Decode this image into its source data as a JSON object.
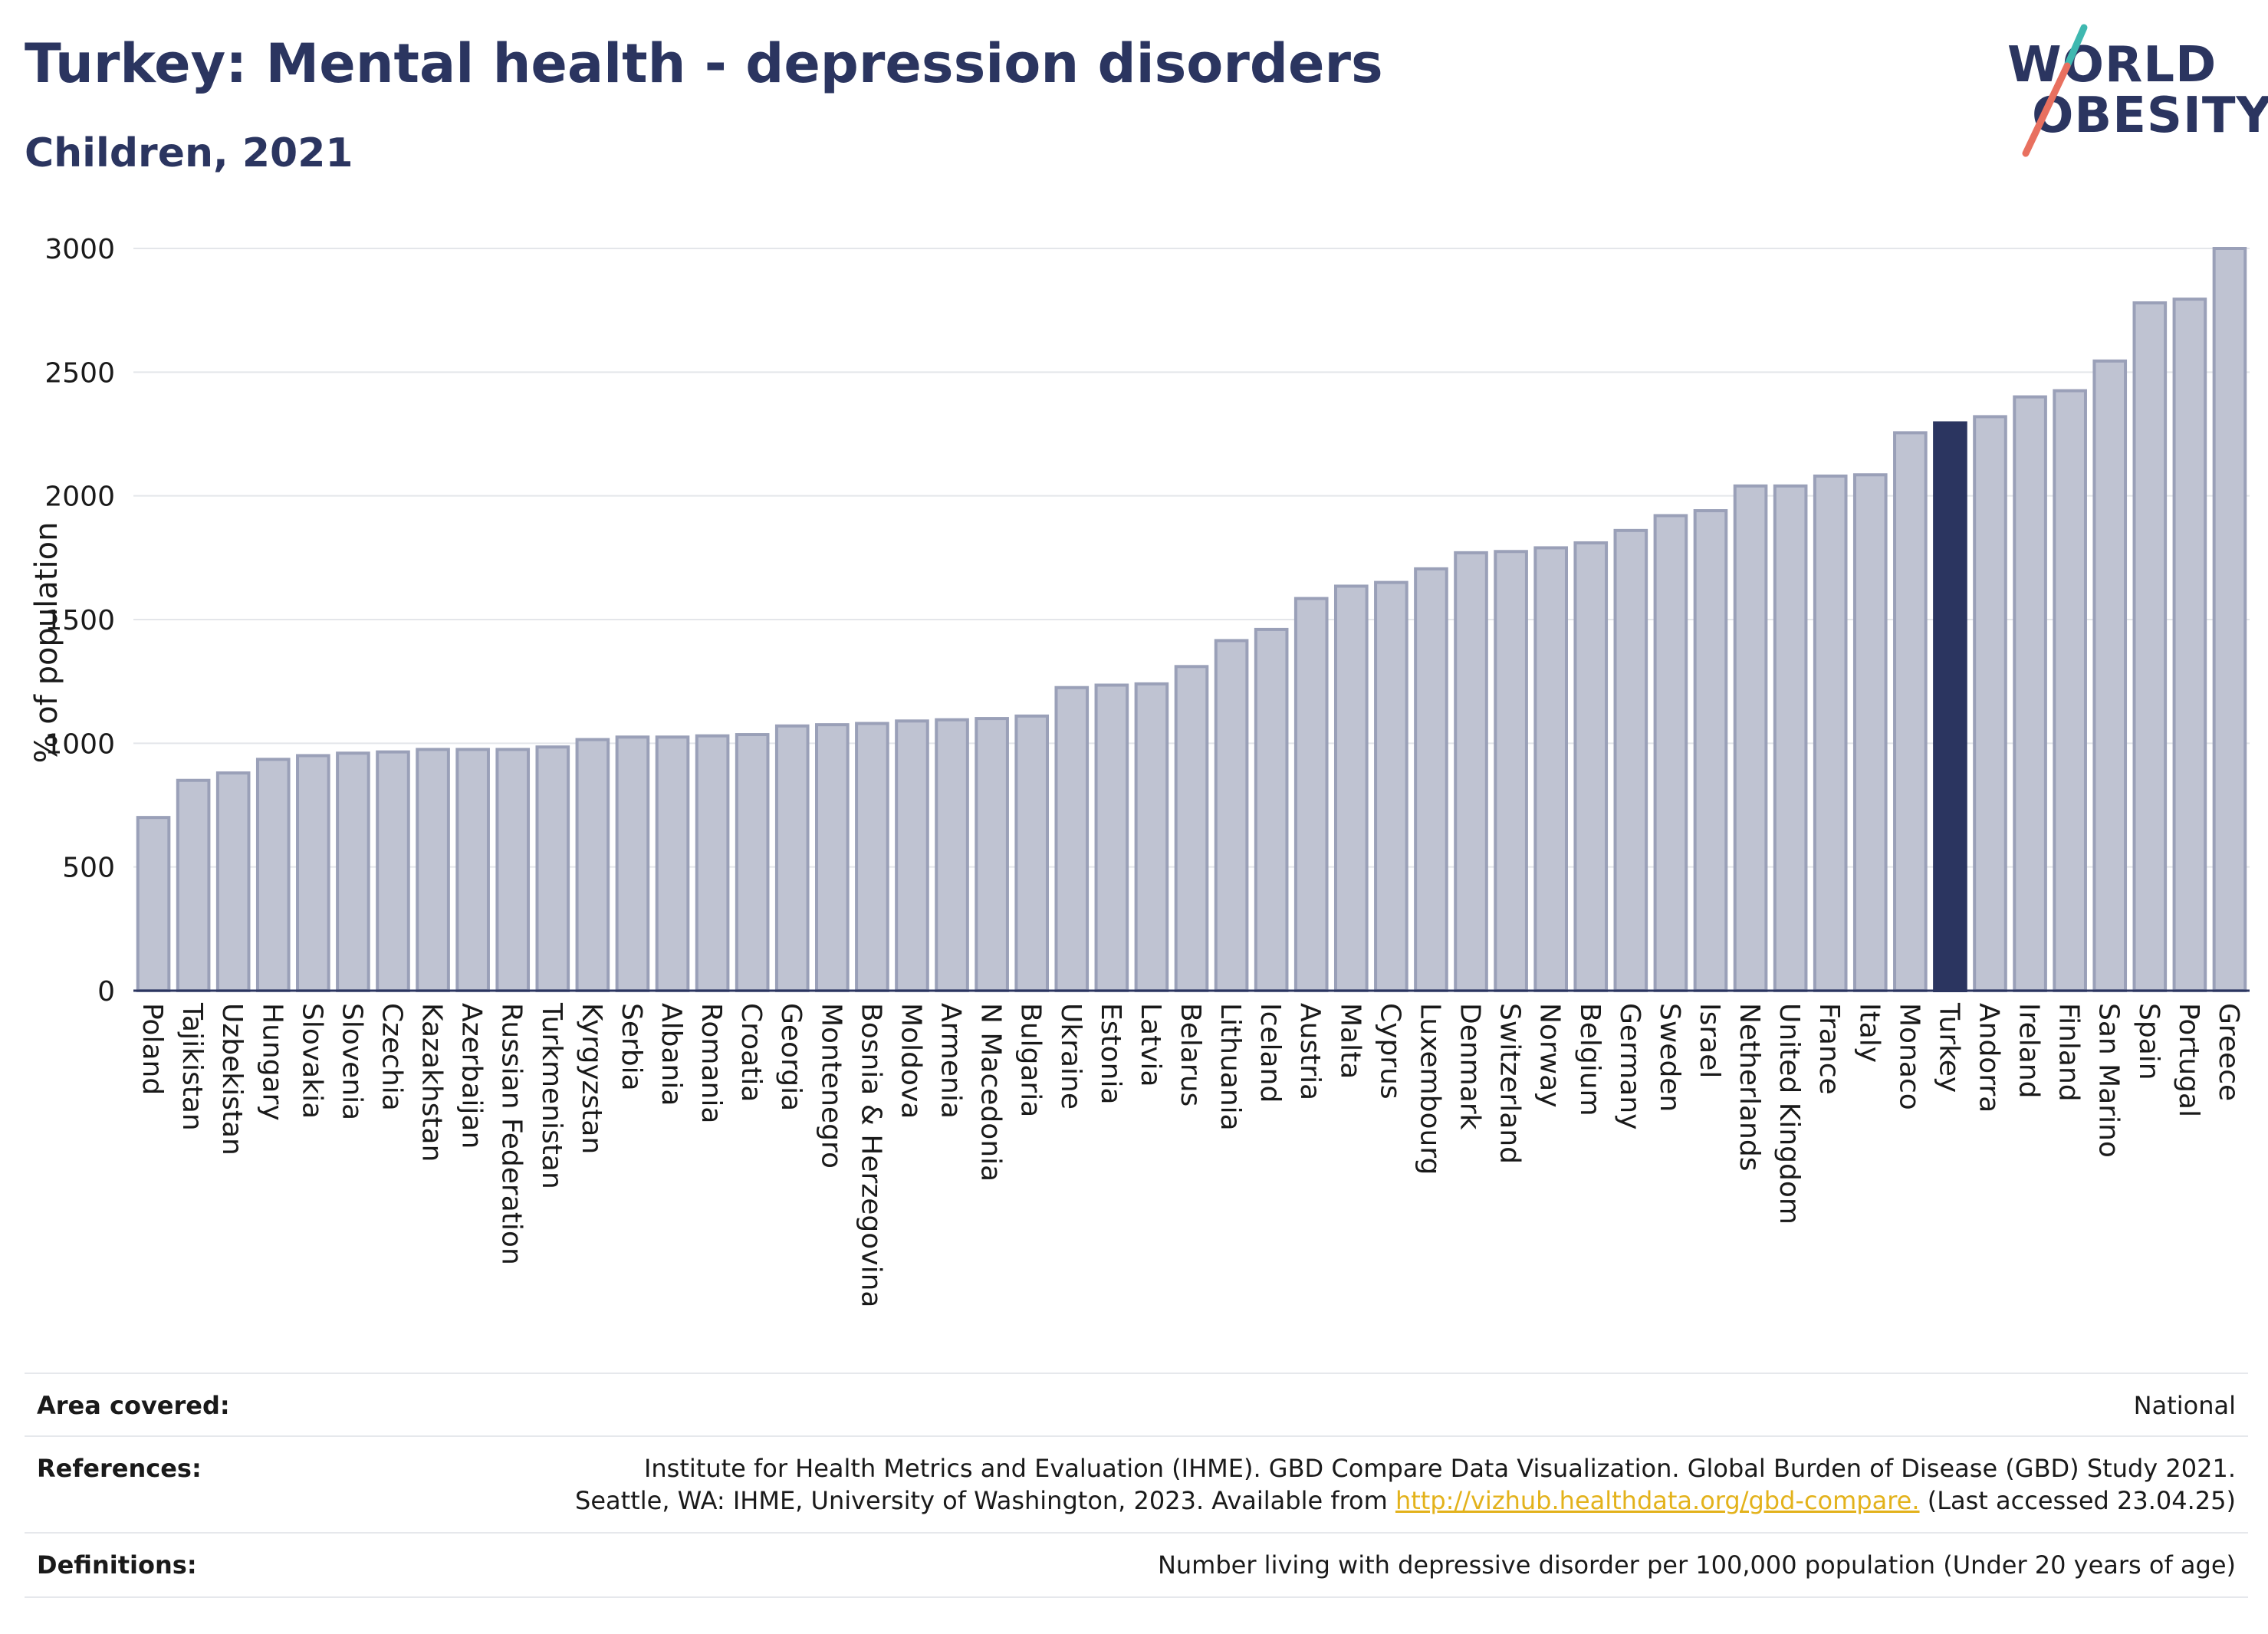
{
  "header": {
    "title": "Turkey: Mental health - depression disorders",
    "subtitle": "Children, 2021"
  },
  "logo": {
    "line1": "WORLD",
    "line2": "OBESITY"
  },
  "colors": {
    "bar": "#bfc3d2",
    "bar_stroke": "#9aa0b8",
    "highlight": "#2b3560",
    "grid": "#e4e6ea",
    "axis_text": "#1a1a1a"
  },
  "chart_data": {
    "type": "bar",
    "title": "Turkey: Mental health - depression disorders",
    "subtitle": "Children, 2021",
    "ylabel": "% of population",
    "xlabel": "",
    "ylim": [
      0,
      3000
    ],
    "yticks": [
      0,
      500,
      1000,
      1500,
      2000,
      2500,
      3000
    ],
    "grid": true,
    "highlight": "Turkey",
    "categories": [
      "Poland",
      "Tajikistan",
      "Uzbekistan",
      "Hungary",
      "Slovakia",
      "Slovenia",
      "Czechia",
      "Kazakhstan",
      "Azerbaijan",
      "Russian Federation",
      "Turkmenistan",
      "Kyrgyzstan",
      "Serbia",
      "Albania",
      "Romania",
      "Croatia",
      "Georgia",
      "Montenegro",
      "Bosnia & Herzegovina",
      "Moldova",
      "Armenia",
      "N Macedonia",
      "Bulgaria",
      "Ukraine",
      "Estonia",
      "Latvia",
      "Belarus",
      "Lithuania",
      "Iceland",
      "Austria",
      "Malta",
      "Cyprus",
      "Luxembourg",
      "Denmark",
      "Switzerland",
      "Norway",
      "Belgium",
      "Germany",
      "Sweden",
      "Israel",
      "Netherlands",
      "United Kingdom",
      "France",
      "Italy",
      "Monaco",
      "Turkey",
      "Andorra",
      "Ireland",
      "Finland",
      "San Marino",
      "Spain",
      "Portugal",
      "Greece"
    ],
    "values": [
      700,
      850,
      880,
      935,
      950,
      960,
      965,
      975,
      975,
      975,
      985,
      1015,
      1025,
      1025,
      1030,
      1035,
      1070,
      1075,
      1080,
      1090,
      1095,
      1100,
      1110,
      1225,
      1235,
      1240,
      1310,
      1415,
      1460,
      1585,
      1635,
      1650,
      1705,
      1770,
      1775,
      1790,
      1810,
      1860,
      1920,
      1940,
      2040,
      2040,
      2080,
      2085,
      2255,
      2295,
      2320,
      2400,
      2425,
      2545,
      2780,
      2795,
      3000
    ]
  },
  "footer": {
    "area_label": "Area covered:",
    "area_value": "National",
    "refs_label": "References:",
    "refs_line1": "Institute for Health Metrics and Evaluation (IHME). GBD Compare Data Visualization. Global Burden of Disease (GBD) Study 2021.",
    "refs_line2_pre": "Seattle, WA: IHME, University of Washington, 2023. Available from ",
    "refs_link": "http://vizhub.healthdata.org/gbd-compare.",
    "refs_line2_post": " (Last accessed 23.04.25)",
    "defs_label": "Definitions:",
    "defs_value": "Number living with depressive disorder per 100,000 population (Under 20 years of age)"
  }
}
